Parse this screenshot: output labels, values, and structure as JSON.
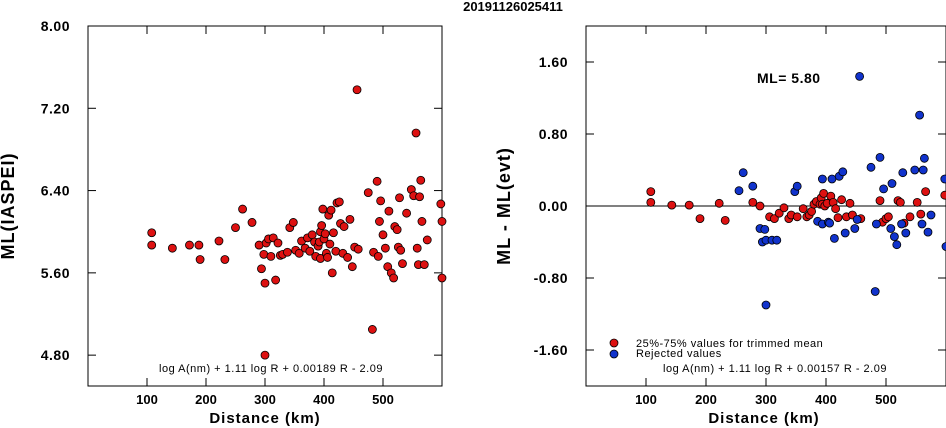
{
  "page": {
    "title": "20191126025411"
  },
  "colors": {
    "trimmed": "#dd1111",
    "rejected": "#1133cc",
    "axis": "#000000",
    "background": "#ffffff"
  },
  "chart_data": [
    {
      "type": "scatter",
      "title": "",
      "xlabel": "Distance (km)",
      "ylabel": "ML(IASPEI)",
      "xlim": [
        0,
        600
      ],
      "ylim": [
        4.5,
        8.0
      ],
      "xticks": [
        100,
        200,
        300,
        400,
        500
      ],
      "xtick_labels": [
        "100",
        "200",
        "300",
        "400",
        "500"
      ],
      "yticks": [
        4.8,
        5.6,
        6.4,
        7.2,
        8.0
      ],
      "ytick_labels": [
        "4.80",
        "5.60",
        "6.40",
        "7.20",
        "8.00"
      ],
      "grid": false,
      "formula": "log A(nm) + 1.11 log R + 0.00189 R - 2.09",
      "series": [
        {
          "color": "#dd1111",
          "points": [
            [
              108,
              5.99
            ],
            [
              108,
              5.87
            ],
            [
              143,
              5.84
            ],
            [
              172,
              5.87
            ],
            [
              188,
              5.87
            ],
            [
              190,
              5.73
            ],
            [
              222,
              5.91
            ],
            [
              232,
              5.73
            ],
            [
              250,
              6.04
            ],
            [
              262,
              6.22
            ],
            [
              278,
              6.09
            ],
            [
              290,
              5.87
            ],
            [
              294,
              5.64
            ],
            [
              298,
              5.78
            ],
            [
              300,
              5.5
            ],
            [
              300,
              4.8
            ],
            [
              302,
              5.89
            ],
            [
              306,
              5.93
            ],
            [
              310,
              5.76
            ],
            [
              314,
              5.94
            ],
            [
              318,
              5.53
            ],
            [
              322,
              5.89
            ],
            [
              326,
              5.77
            ],
            [
              330,
              5.78
            ],
            [
              338,
              5.8
            ],
            [
              342,
              6.04
            ],
            [
              348,
              6.09
            ],
            [
              352,
              5.82
            ],
            [
              358,
              5.79
            ],
            [
              362,
              5.91
            ],
            [
              368,
              5.84
            ],
            [
              372,
              5.94
            ],
            [
              376,
              5.81
            ],
            [
              380,
              5.97
            ],
            [
              384,
              5.9
            ],
            [
              386,
              5.76
            ],
            [
              390,
              5.86
            ],
            [
              392,
              5.9
            ],
            [
              394,
              6.0
            ],
            [
              394,
              5.74
            ],
            [
              396,
              6.06
            ],
            [
              398,
              6.22
            ],
            [
              400,
              5.93
            ],
            [
              402,
              5.98
            ],
            [
              404,
              5.79
            ],
            [
              406,
              5.75
            ],
            [
              408,
              6.16
            ],
            [
              410,
              5.88
            ],
            [
              412,
              6.21
            ],
            [
              414,
              5.6
            ],
            [
              416,
              5.99
            ],
            [
              420,
              5.81
            ],
            [
              422,
              6.28
            ],
            [
              426,
              6.29
            ],
            [
              428,
              6.08
            ],
            [
              432,
              5.79
            ],
            [
              434,
              6.05
            ],
            [
              440,
              5.75
            ],
            [
              444,
              6.12
            ],
            [
              448,
              5.66
            ],
            [
              452,
              5.85
            ],
            [
              456,
              7.38
            ],
            [
              458,
              5.83
            ],
            [
              475,
              6.38
            ],
            [
              482,
              5.05
            ],
            [
              484,
              5.8
            ],
            [
              490,
              6.49
            ],
            [
              492,
              5.76
            ],
            [
              494,
              6.1
            ],
            [
              496,
              6.3
            ],
            [
              500,
              5.97
            ],
            [
              504,
              5.84
            ],
            [
              508,
              5.66
            ],
            [
              510,
              6.2
            ],
            [
              514,
              5.6
            ],
            [
              518,
              5.55
            ],
            [
              520,
              6.05
            ],
            [
              524,
              6.02
            ],
            [
              526,
              5.85
            ],
            [
              528,
              6.33
            ],
            [
              530,
              5.82
            ],
            [
              533,
              5.69
            ],
            [
              540,
              6.18
            ],
            [
              548,
              6.41
            ],
            [
              552,
              6.35
            ],
            [
              556,
              6.96
            ],
            [
              558,
              5.84
            ],
            [
              560,
              5.68
            ],
            [
              562,
              6.34
            ],
            [
              564,
              6.5
            ],
            [
              566,
              6.1
            ],
            [
              570,
              5.68
            ],
            [
              575,
              5.92
            ],
            [
              598,
              6.27
            ],
            [
              600,
              6.1
            ],
            [
              600,
              5.55
            ]
          ]
        }
      ]
    },
    {
      "type": "scatter",
      "title": "",
      "xlabel": "Distance (km)",
      "ylabel": "ML - ML(evt)",
      "xlim": [
        0,
        600
      ],
      "ylim": [
        -2.0,
        2.0
      ],
      "xticks": [
        100,
        200,
        300,
        400,
        500
      ],
      "xtick_labels": [
        "100",
        "200",
        "300",
        "400",
        "500"
      ],
      "yticks": [
        -1.6,
        -0.8,
        0.0,
        0.8,
        1.6
      ],
      "ytick_labels": [
        "-1.60",
        "-0.80",
        "0.00",
        "0.80",
        "1.60"
      ],
      "zero_line": 0.0,
      "grid": false,
      "annotation": "ML= 5.80",
      "legend_location": "bottom-left",
      "formula": "log A(nm) + 1.11 log R + 0.00157 R - 2.09",
      "series": [
        {
          "name": "25%-75% values for trimmed mean",
          "color": "#dd1111",
          "points": [
            [
              108,
              0.16
            ],
            [
              108,
              0.04
            ],
            [
              143,
              0.01
            ],
            [
              172,
              0.01
            ],
            [
              190,
              -0.14
            ],
            [
              222,
              0.03
            ],
            [
              232,
              -0.16
            ],
            [
              278,
              0.04
            ],
            [
              290,
              0.0
            ],
            [
              306,
              -0.12
            ],
            [
              314,
              -0.14
            ],
            [
              322,
              -0.08
            ],
            [
              330,
              -0.02
            ],
            [
              338,
              -0.14
            ],
            [
              342,
              -0.1
            ],
            [
              352,
              -0.12
            ],
            [
              362,
              -0.03
            ],
            [
              368,
              -0.12
            ],
            [
              372,
              -0.1
            ],
            [
              376,
              -0.06
            ],
            [
              380,
              0.02
            ],
            [
              384,
              0.05
            ],
            [
              390,
              0.02
            ],
            [
              392,
              0.09
            ],
            [
              394,
              0.02
            ],
            [
              396,
              0.14
            ],
            [
              398,
              0.0
            ],
            [
              402,
              0.03
            ],
            [
              408,
              0.11
            ],
            [
              412,
              0.04
            ],
            [
              416,
              -0.03
            ],
            [
              420,
              -0.13
            ],
            [
              426,
              0.07
            ],
            [
              434,
              -0.12
            ],
            [
              440,
              0.03
            ],
            [
              444,
              -0.1
            ],
            [
              458,
              -0.14
            ],
            [
              490,
              0.06
            ],
            [
              494,
              -0.18
            ],
            [
              500,
              -0.14
            ],
            [
              504,
              -0.12
            ],
            [
              520,
              0.06
            ],
            [
              524,
              0.04
            ],
            [
              530,
              -0.19
            ],
            [
              540,
              -0.12
            ],
            [
              552,
              0.04
            ],
            [
              558,
              -0.09
            ],
            [
              566,
              0.16
            ],
            [
              598,
              0.12
            ]
          ]
        },
        {
          "name": "Rejected values",
          "color": "#1133cc",
          "points": [
            [
              255,
              0.17
            ],
            [
              262,
              0.37
            ],
            [
              278,
              0.22
            ],
            [
              290,
              -0.25
            ],
            [
              294,
              -0.4
            ],
            [
              298,
              -0.26
            ],
            [
              300,
              -0.38
            ],
            [
              300,
              -1.1
            ],
            [
              310,
              -0.38
            ],
            [
              318,
              -0.38
            ],
            [
              348,
              0.16
            ],
            [
              352,
              0.22
            ],
            [
              386,
              -0.17
            ],
            [
              394,
              0.3
            ],
            [
              394,
              -0.2
            ],
            [
              404,
              -0.18
            ],
            [
              406,
              -0.19
            ],
            [
              410,
              0.3
            ],
            [
              414,
              -0.36
            ],
            [
              422,
              0.33
            ],
            [
              428,
              0.38
            ],
            [
              432,
              -0.3
            ],
            [
              448,
              -0.25
            ],
            [
              452,
              -0.15
            ],
            [
              456,
              1.44
            ],
            [
              475,
              0.43
            ],
            [
              482,
              -0.95
            ],
            [
              484,
              -0.2
            ],
            [
              490,
              0.54
            ],
            [
              496,
              0.19
            ],
            [
              508,
              -0.25
            ],
            [
              510,
              0.25
            ],
            [
              514,
              -0.34
            ],
            [
              518,
              -0.43
            ],
            [
              526,
              -0.2
            ],
            [
              528,
              0.37
            ],
            [
              533,
              -0.3
            ],
            [
              548,
              0.4
            ],
            [
              556,
              1.01
            ],
            [
              560,
              -0.2
            ],
            [
              562,
              0.4
            ],
            [
              564,
              0.53
            ],
            [
              570,
              -0.29
            ],
            [
              575,
              -0.1
            ],
            [
              598,
              0.3
            ],
            [
              600,
              -0.45
            ]
          ]
        }
      ]
    }
  ]
}
